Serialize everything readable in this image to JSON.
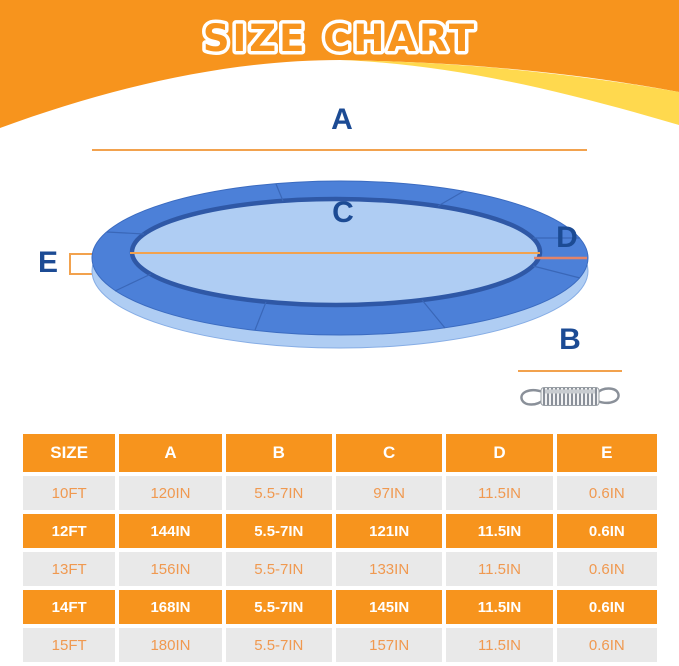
{
  "title": "SIZE CHART",
  "diagram": {
    "label_a": "A",
    "label_b": "B",
    "label_c": "C",
    "label_d": "D",
    "label_e": "E",
    "pad_icon": "trampoline-pad-icon",
    "spring_icon": "spring-icon"
  },
  "table": {
    "headers": [
      "SIZE",
      "A",
      "B",
      "C",
      "D",
      "E"
    ],
    "rows": [
      {
        "highlight": false,
        "cells": [
          "10FT",
          "120IN",
          "5.5-7IN",
          "97IN",
          "11.5IN",
          "0.6IN"
        ]
      },
      {
        "highlight": true,
        "cells": [
          "12FT",
          "144IN",
          "5.5-7IN",
          "121IN",
          "11.5IN",
          "0.6IN"
        ]
      },
      {
        "highlight": false,
        "cells": [
          "13FT",
          "156IN",
          "5.5-7IN",
          "133IN",
          "11.5IN",
          "0.6IN"
        ]
      },
      {
        "highlight": true,
        "cells": [
          "14FT",
          "168IN",
          "5.5-7IN",
          "145IN",
          "11.5IN",
          "0.6IN"
        ]
      },
      {
        "highlight": false,
        "cells": [
          "15FT",
          "180IN",
          "5.5-7IN",
          "157IN",
          "11.5IN",
          "0.6IN"
        ]
      }
    ]
  },
  "colors": {
    "orange": "#F7941D",
    "yellow": "#FFD94E",
    "navy": "#1C4B94",
    "pad-blue": "#4C80D8",
    "pad-underside": "#AFCDF3",
    "pad-rim": "#2F58A6",
    "row-gray": "#E9E9E9",
    "row-text-orange": "#F09950",
    "line-orange": "#F2A24E",
    "line-salmon": "#E2846A",
    "spring-gray": "#8A9099"
  }
}
